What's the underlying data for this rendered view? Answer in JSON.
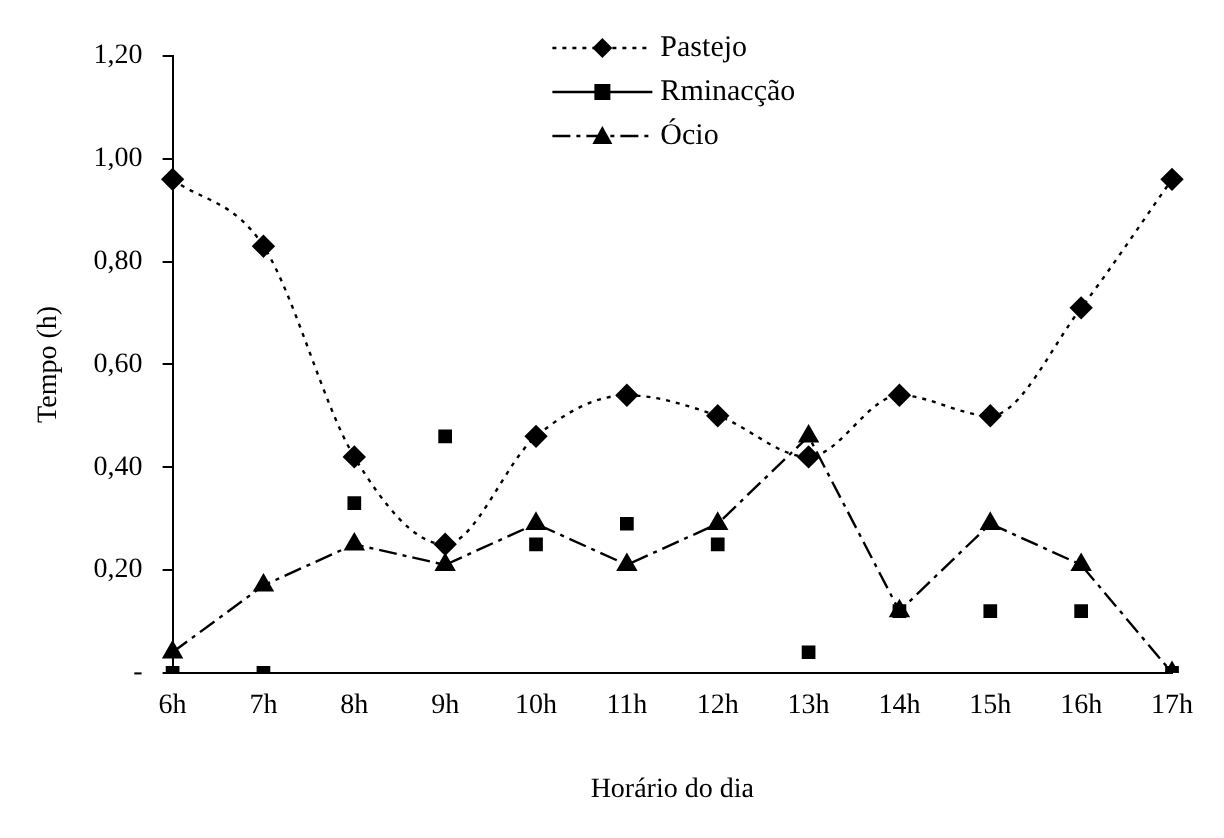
{
  "chart_data": {
    "type": "line",
    "xlabel": "Horário do dia",
    "ylabel": "Tempo (h)",
    "categories": [
      "6h",
      "7h",
      "8h",
      "9h",
      "10h",
      "11h",
      "12h",
      "13h",
      "14h",
      "15h",
      "16h",
      "17h"
    ],
    "series": [
      {
        "name": "Pastejo",
        "type": "line",
        "color": "#000000",
        "marker": "diamond",
        "line_style": "dotted",
        "values": [
          0.96,
          0.83,
          0.42,
          0.25,
          0.46,
          0.54,
          0.5,
          0.42,
          0.54,
          0.5,
          0.71,
          0.96
        ]
      },
      {
        "name": "Rminacção",
        "type": "scatter",
        "color": "#000000",
        "marker": "square",
        "values": [
          0,
          0,
          0.33,
          0.46,
          0.25,
          0.29,
          0.25,
          0.04,
          0.12,
          0.12,
          0.12,
          0
        ]
      },
      {
        "name": "Ócio",
        "type": "line",
        "color": "#000000",
        "marker": "triangle",
        "line_style": "dashed",
        "values": [
          0.04,
          0.17,
          0.25,
          0.21,
          0.29,
          0.21,
          0.29,
          0.46,
          0.12,
          0.29,
          0.21,
          0
        ]
      }
    ],
    "ylim": [
      0,
      1.2
    ],
    "yticks": [
      {
        "value": 0,
        "label": "-"
      },
      {
        "value": 0.2,
        "label": "0,20"
      },
      {
        "value": 0.4,
        "label": "0,40"
      },
      {
        "value": 0.6,
        "label": "0,60"
      },
      {
        "value": 0.8,
        "label": "0,80"
      },
      {
        "value": 1.0,
        "label": "1,00"
      },
      {
        "value": 1.2,
        "label": "1,20"
      }
    ],
    "grid": false,
    "legend": "top"
  }
}
